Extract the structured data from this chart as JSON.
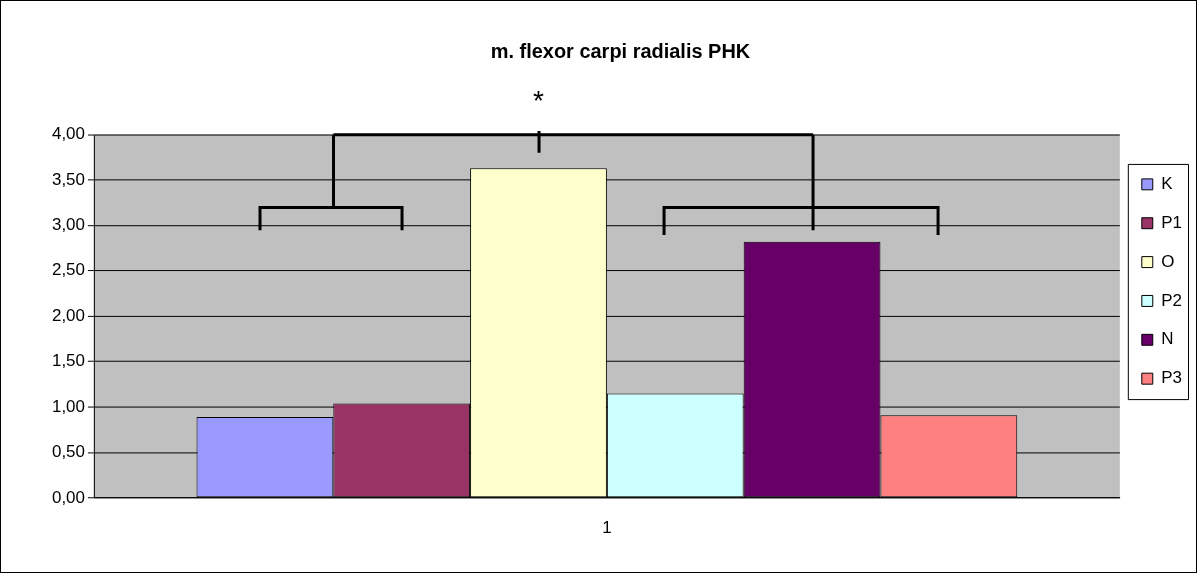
{
  "chart_data": {
    "type": "bar",
    "title": "m. flexor carpi radialis PHK",
    "categories": [
      "1"
    ],
    "series": [
      {
        "name": "K",
        "color": "#9999ff",
        "values": [
          0.89
        ]
      },
      {
        "name": "P1",
        "color": "#993366",
        "values": [
          1.04
        ]
      },
      {
        "name": "O",
        "color": "#ffffcc",
        "values": [
          3.63
        ]
      },
      {
        "name": "P2",
        "color": "#ccffff",
        "values": [
          1.15
        ]
      },
      {
        "name": "N",
        "color": "#660066",
        "values": [
          2.82
        ]
      },
      {
        "name": "P3",
        "color": "#ff8080",
        "values": [
          0.91
        ]
      }
    ],
    "ylim": [
      0,
      4
    ],
    "yticks": [
      {
        "value": 0,
        "label": "0,00"
      },
      {
        "value": 0.5,
        "label": "0,50"
      },
      {
        "value": 1,
        "label": "1,00"
      },
      {
        "value": 1.5,
        "label": "1,50"
      },
      {
        "value": 2,
        "label": "2,00"
      },
      {
        "value": 2.5,
        "label": "2,50"
      },
      {
        "value": 3,
        "label": "3,00"
      },
      {
        "value": 3.5,
        "label": "3,50"
      },
      {
        "value": 4,
        "label": "4,00"
      }
    ],
    "grid": "y",
    "legend": "right",
    "annotations": [
      "*"
    ]
  }
}
